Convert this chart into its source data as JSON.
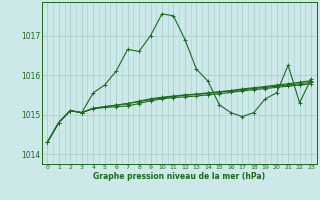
{
  "title": "Graphe pression niveau de la mer (hPa)",
  "background_color": "#cce8e8",
  "grid_color": "#aacfcf",
  "line_color": "#1a6b1a",
  "xlim": [
    -0.5,
    23.5
  ],
  "ylim": [
    1013.75,
    1017.85
  ],
  "yticks": [
    1014,
    1015,
    1016,
    1017
  ],
  "xticks": [
    0,
    1,
    2,
    3,
    4,
    5,
    6,
    7,
    8,
    9,
    10,
    11,
    12,
    13,
    14,
    15,
    16,
    17,
    18,
    19,
    20,
    21,
    22,
    23
  ],
  "series": [
    [
      1014.3,
      1014.8,
      1015.1,
      1015.05,
      1015.55,
      1015.75,
      1016.1,
      1016.65,
      1016.6,
      1017.0,
      1017.55,
      1017.5,
      1016.9,
      1016.15,
      1015.85,
      1015.25,
      1015.05,
      1014.95,
      1015.05,
      1015.4,
      1015.55,
      1016.25,
      1015.3,
      1015.9
    ],
    [
      1014.3,
      1014.8,
      1015.1,
      1015.05,
      1015.15,
      1015.18,
      1015.2,
      1015.22,
      1015.28,
      1015.35,
      1015.4,
      1015.43,
      1015.45,
      1015.47,
      1015.5,
      1015.53,
      1015.56,
      1015.6,
      1015.63,
      1015.66,
      1015.69,
      1015.72,
      1015.75,
      1015.78
    ],
    [
      1014.3,
      1014.8,
      1015.1,
      1015.05,
      1015.16,
      1015.2,
      1015.24,
      1015.28,
      1015.33,
      1015.38,
      1015.42,
      1015.46,
      1015.49,
      1015.51,
      1015.54,
      1015.57,
      1015.6,
      1015.63,
      1015.66,
      1015.69,
      1015.72,
      1015.75,
      1015.78,
      1015.82
    ],
    [
      1014.3,
      1014.8,
      1015.1,
      1015.05,
      1015.16,
      1015.2,
      1015.24,
      1015.28,
      1015.34,
      1015.4,
      1015.44,
      1015.47,
      1015.5,
      1015.52,
      1015.55,
      1015.58,
      1015.61,
      1015.65,
      1015.68,
      1015.71,
      1015.75,
      1015.78,
      1015.82,
      1015.86
    ]
  ]
}
